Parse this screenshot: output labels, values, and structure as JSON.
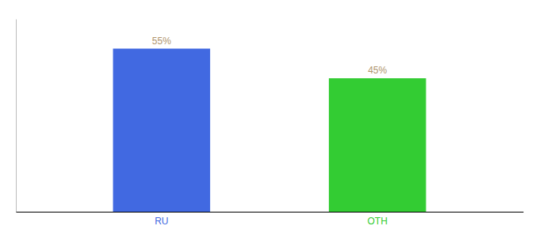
{
  "chart_data": {
    "type": "bar",
    "categories": [
      "RU",
      "OTH"
    ],
    "values": [
      55,
      45
    ],
    "value_labels": [
      "55%",
      "45%"
    ],
    "colors": [
      "#4169e1",
      "#33cc33"
    ],
    "ylim": [
      0,
      65
    ],
    "data_labels": true,
    "tick_labels": "x",
    "grid": false
  }
}
